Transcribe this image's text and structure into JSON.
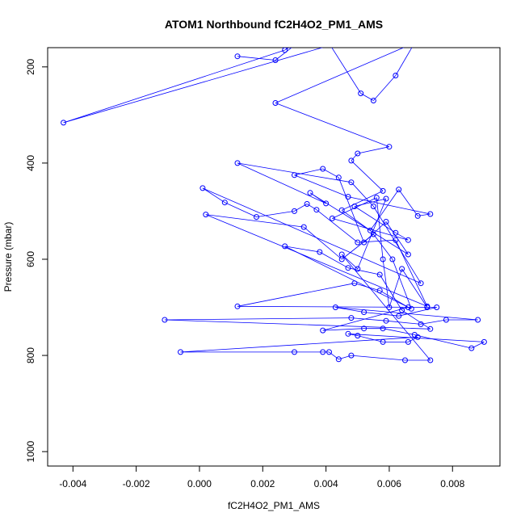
{
  "chart_data": {
    "type": "line",
    "title": "ATOM1 Northbound fC2H4O2_PM1_AMS",
    "xlabel": "fC2H4O2_PM1_AMS",
    "ylabel": "Pressure (mbar)",
    "xlim": [
      -0.0048,
      0.0095
    ],
    "ylim": [
      1030,
      160
    ],
    "y_reversed": true,
    "grid": false,
    "x_ticks": [
      -0.004,
      -0.002,
      0.0,
      0.002,
      0.004,
      0.006,
      0.008
    ],
    "x_tick_labels": [
      "-0.004",
      "-0.002",
      "0.000",
      "0.002",
      "0.004",
      "0.006",
      "0.008"
    ],
    "y_ticks": [
      200,
      400,
      600,
      800,
      1000
    ],
    "y_tick_labels": [
      "200",
      "400",
      "600",
      "800",
      "1000"
    ],
    "series": [
      {
        "color": "#0000ff",
        "marker": "open-circle",
        "points": [
          [
            0.0012,
            178
          ],
          [
            0.0024,
            186
          ],
          [
            0.0033,
            140
          ],
          [
            0.0044,
            150
          ],
          [
            -0.0043,
            316
          ],
          [
            0.0027,
            165
          ],
          [
            0.0038,
            120
          ],
          [
            0.0051,
            255
          ],
          [
            0.0055,
            270
          ],
          [
            0.0062,
            218
          ],
          [
            0.0068,
            150
          ],
          [
            0.0024,
            275
          ],
          [
            0.006,
            366
          ],
          [
            0.005,
            380
          ],
          [
            0.0048,
            395
          ],
          [
            0.0058,
            458
          ],
          [
            0.0045,
            498
          ],
          [
            0.0054,
            540
          ],
          [
            0.0063,
            455
          ],
          [
            0.0069,
            510
          ],
          [
            0.0073,
            506
          ],
          [
            0.0047,
            470
          ],
          [
            0.003,
            425
          ],
          [
            0.0039,
            412
          ],
          [
            0.0044,
            430
          ],
          [
            0.0052,
            565
          ],
          [
            0.0059,
            522
          ],
          [
            0.0066,
            590
          ],
          [
            0.0035,
            462
          ],
          [
            0.004,
            484
          ],
          [
            0.0012,
            400
          ],
          [
            0.0048,
            440
          ],
          [
            0.0055,
            490
          ],
          [
            0.007,
            650
          ],
          [
            0.0001,
            452
          ],
          [
            0.0008,
            482
          ],
          [
            0.0018,
            512
          ],
          [
            0.003,
            500
          ],
          [
            0.0034,
            485
          ],
          [
            0.0037,
            497
          ],
          [
            0.005,
            565
          ],
          [
            0.0062,
            560
          ],
          [
            0.0072,
            698
          ],
          [
            0.0002,
            507
          ],
          [
            0.0033,
            533
          ],
          [
            0.0045,
            600
          ],
          [
            0.0055,
            548
          ],
          [
            0.0061,
            600
          ],
          [
            0.0067,
            703
          ],
          [
            0.0027,
            573
          ],
          [
            0.0038,
            585
          ],
          [
            0.0047,
            618
          ],
          [
            0.0057,
            632
          ],
          [
            0.0064,
            706
          ],
          [
            0.0073,
            745
          ],
          [
            -0.0011,
            726
          ],
          [
            0.0048,
            722
          ],
          [
            0.0059,
            728
          ],
          [
            0.007,
            735
          ],
          [
            0.0078,
            726
          ],
          [
            0.0088,
            726
          ],
          [
            0.0043,
            700
          ],
          [
            0.0052,
            710
          ],
          [
            0.0063,
            718
          ],
          [
            0.0075,
            700
          ],
          [
            0.0012,
            698
          ],
          [
            0.0049,
            650
          ],
          [
            0.0057,
            665
          ],
          [
            0.0066,
            700
          ],
          [
            0.0039,
            748
          ],
          [
            0.0052,
            744
          ],
          [
            0.0058,
            744
          ],
          [
            0.0068,
            757
          ],
          [
            0.0086,
            785
          ],
          [
            0.009,
            772
          ],
          [
            0.0047,
            755
          ],
          [
            0.005,
            759
          ],
          [
            0.0058,
            772
          ],
          [
            0.0066,
            772
          ],
          [
            0.0069,
            762
          ],
          [
            -0.0006,
            793
          ],
          [
            0.003,
            793
          ],
          [
            0.0039,
            793
          ],
          [
            0.0041,
            793
          ],
          [
            0.0044,
            808
          ],
          [
            0.0048,
            800
          ],
          [
            0.0065,
            810
          ],
          [
            0.0073,
            810
          ],
          [
            0.0045,
            590
          ],
          [
            0.005,
            620
          ],
          [
            0.0059,
            474
          ],
          [
            0.0049,
            490
          ],
          [
            0.0062,
            545
          ],
          [
            0.0066,
            560
          ],
          [
            0.0042,
            515
          ],
          [
            0.0056,
            472
          ],
          [
            0.0058,
            600
          ],
          [
            0.006,
            700
          ],
          [
            0.0064,
            620
          ],
          [
            0.0072,
            700
          ]
        ]
      }
    ]
  }
}
